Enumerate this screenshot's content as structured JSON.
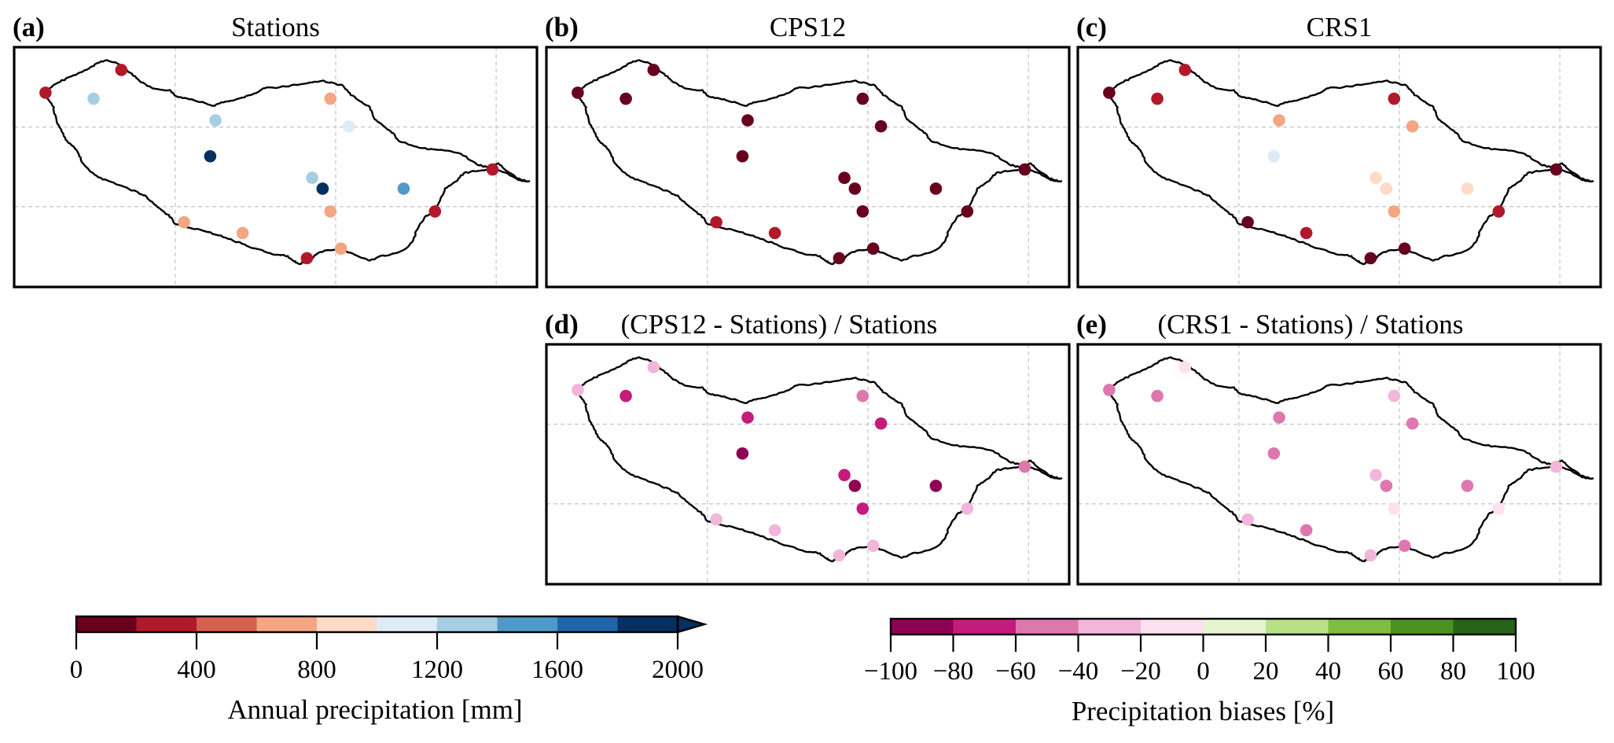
{
  "chart_data": {
    "type": "scatter",
    "description": "Station-based annual precipitation maps over an island, with model comparisons and relative biases",
    "stations": [
      {
        "id": 1,
        "x": 0.06,
        "y": 0.19
      },
      {
        "id": 2,
        "x": 0.205,
        "y": 0.095
      },
      {
        "id": 3,
        "x": 0.152,
        "y": 0.215
      },
      {
        "id": 4,
        "x": 0.385,
        "y": 0.305
      },
      {
        "id": 5,
        "x": 0.375,
        "y": 0.455
      },
      {
        "id": 6,
        "x": 0.605,
        "y": 0.215
      },
      {
        "id": 7,
        "x": 0.64,
        "y": 0.33
      },
      {
        "id": 8,
        "x": 0.57,
        "y": 0.545
      },
      {
        "id": 9,
        "x": 0.59,
        "y": 0.59
      },
      {
        "id": 10,
        "x": 0.605,
        "y": 0.685
      },
      {
        "id": 11,
        "x": 0.745,
        "y": 0.59
      },
      {
        "id": 12,
        "x": 0.915,
        "y": 0.51
      },
      {
        "id": 13,
        "x": 0.805,
        "y": 0.685
      },
      {
        "id": 14,
        "x": 0.325,
        "y": 0.73
      },
      {
        "id": 15,
        "x": 0.437,
        "y": 0.775
      },
      {
        "id": 16,
        "x": 0.56,
        "y": 0.88
      },
      {
        "id": 17,
        "x": 0.625,
        "y": 0.84
      }
    ],
    "panels": [
      {
        "key": "a",
        "label": "(a)",
        "title": "Stations",
        "colormap": "precip",
        "xlabel": "",
        "ylabel": "",
        "values": [
          300,
          300,
          1300,
          1300,
          1900,
          700,
          1100,
          1300,
          1900,
          700,
          1500,
          300,
          300,
          700,
          700,
          300,
          700
        ]
      },
      {
        "key": "b",
        "label": "(b)",
        "title": "CPS12",
        "colormap": "precip",
        "xlabel": "",
        "ylabel": "",
        "values": [
          100,
          100,
          100,
          100,
          100,
          100,
          100,
          100,
          100,
          100,
          100,
          100,
          100,
          300,
          300,
          100,
          100
        ]
      },
      {
        "key": "c",
        "label": "(c)",
        "title": "CRS1",
        "colormap": "precip",
        "xlabel": "",
        "ylabel": "",
        "values": [
          100,
          300,
          300,
          700,
          1100,
          300,
          700,
          900,
          900,
          700,
          900,
          100,
          300,
          100,
          300,
          100,
          100
        ]
      },
      {
        "key": "d",
        "label": "(d)",
        "title": "(CPS12 - Stations) / Stations",
        "colormap": "bias",
        "xlabel": "",
        "ylabel": "",
        "values": [
          -30,
          -30,
          -70,
          -70,
          -90,
          -50,
          -70,
          -70,
          -90,
          -70,
          -90,
          -50,
          -30,
          -30,
          -30,
          -30,
          -30
        ]
      },
      {
        "key": "e",
        "label": "(e)",
        "title": "(CRS1 - Stations) / Stations",
        "colormap": "bias",
        "xlabel": "",
        "ylabel": "",
        "values": [
          -50,
          -10,
          -50,
          -50,
          -50,
          -30,
          -50,
          -30,
          -50,
          -10,
          -50,
          -30,
          -10,
          -30,
          -50,
          -30,
          -50
        ]
      }
    ],
    "colorbars": [
      {
        "key": "precip",
        "label": "Annual precipitation [mm]",
        "range": [
          0,
          2000
        ],
        "extend": "max",
        "bounds": [
          0,
          200,
          400,
          600,
          800,
          1000,
          1200,
          1400,
          1600,
          1800,
          2000
        ],
        "colors": [
          "#67001f",
          "#b2182b",
          "#d6604d",
          "#f4a582",
          "#fddbc7",
          "#deebf7",
          "#a6cee3",
          "#4f9ac9",
          "#2166ac",
          "#053061"
        ],
        "ticks": [
          "0",
          "400",
          "800",
          "1200",
          "1600",
          "2000"
        ]
      },
      {
        "key": "bias",
        "label": "Precipitation biases [%]",
        "range": [
          -100,
          100
        ],
        "extend": "neither",
        "bounds": [
          -100,
          -80,
          -60,
          -40,
          -20,
          0,
          20,
          40,
          60,
          80,
          100
        ],
        "colors": [
          "#8e0152",
          "#c51b7d",
          "#de77ae",
          "#f1b6da",
          "#fde0ef",
          "#e6f5d0",
          "#b8e186",
          "#7fbc41",
          "#4d9221",
          "#276419"
        ],
        "ticks": [
          "−100",
          "−80",
          "−60",
          "−40",
          "−20",
          "0",
          "20",
          "40",
          "60",
          "80",
          "100"
        ]
      }
    ],
    "grid": true,
    "legend": "colorbars-bottom"
  }
}
